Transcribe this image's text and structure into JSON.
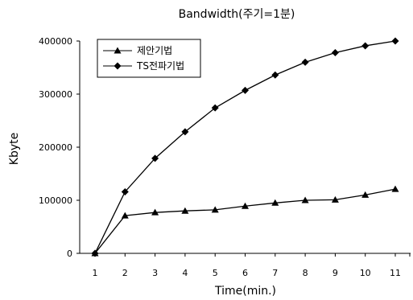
{
  "chart_data": {
    "type": "line",
    "title": "Bandwidth(주기=1분)",
    "xlabel": "Time(min.)",
    "ylabel": "Kbyte",
    "x": [
      1,
      2,
      3,
      4,
      5,
      6,
      7,
      8,
      9,
      10,
      11
    ],
    "ylim": [
      0,
      400000
    ],
    "yticks": [
      "0",
      "100000",
      "200000",
      "300000",
      "400000"
    ],
    "xticks": [
      "1",
      "2",
      "3",
      "4",
      "5",
      "6",
      "7",
      "8",
      "9",
      "10",
      "11"
    ],
    "grid": false,
    "legend": "top-left",
    "series": [
      {
        "name": "제안기법",
        "marker": "triangle",
        "color": "#000000",
        "values": [
          0,
          71000,
          77000,
          80000,
          82000,
          89000,
          95000,
          100000,
          101000,
          110000,
          121000
        ]
      },
      {
        "name": "TS전파기법",
        "marker": "diamond",
        "color": "#000000",
        "values": [
          0,
          116000,
          179000,
          229000,
          274000,
          307000,
          336000,
          360000,
          378000,
          391000,
          400000
        ]
      }
    ]
  }
}
